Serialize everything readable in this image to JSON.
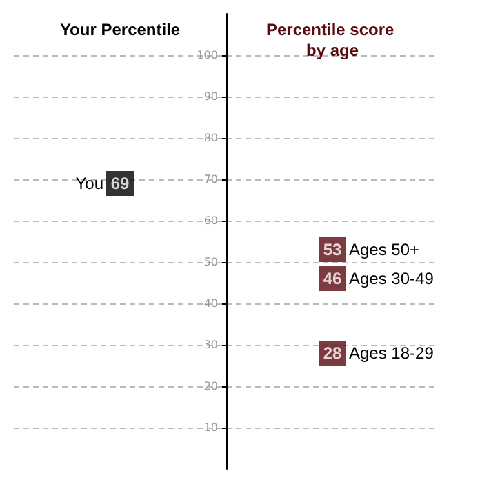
{
  "chart_data": {
    "type": "scatter",
    "categories": [
      "Your Percentile",
      "Percentile score by age"
    ],
    "series": [
      {
        "name": "You",
        "color": "#000000",
        "x": [
          "Your Percentile"
        ],
        "values": [
          69
        ]
      },
      {
        "name": "Ages 50+",
        "color": "#5a0a10",
        "x": [
          "Percentile score by age"
        ],
        "values": [
          53
        ]
      },
      {
        "name": "Ages 30-49",
        "color": "#5a0a10",
        "x": [
          "Percentile score by age"
        ],
        "values": [
          46
        ]
      },
      {
        "name": "Ages 18-29",
        "color": "#5a0a10",
        "x": [
          "Percentile score by age"
        ],
        "values": [
          28
        ]
      }
    ],
    "ylim": [
      0,
      110
    ],
    "yticks": [
      10,
      20,
      30,
      40,
      50,
      60,
      70,
      80,
      90,
      100
    ],
    "grid": "y",
    "marker": "square",
    "data_labels": true,
    "legend": false
  }
}
